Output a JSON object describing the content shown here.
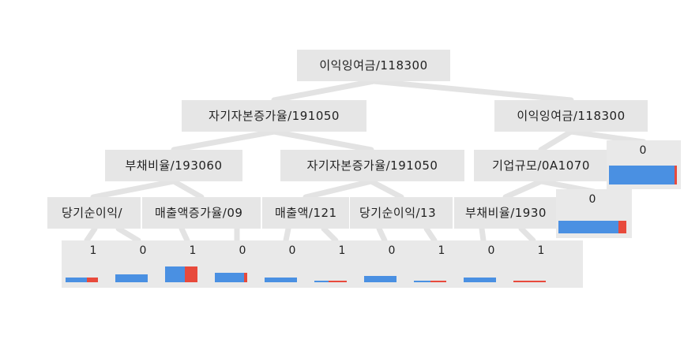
{
  "colors": {
    "edge": "#e3e3e3",
    "node_bg": "#e6e6e6",
    "class0": "#4a90e2",
    "class1": "#e84a3c"
  },
  "nodes": [
    {
      "id": "root",
      "label": "이익잉여금/118300"
    },
    {
      "id": "r",
      "label": "이익잉여금/118300"
    },
    {
      "id": "l",
      "label": "자기자본증가율/191050"
    },
    {
      "id": "ll",
      "label": "부채비율/193060"
    },
    {
      "id": "lr",
      "label": "자기자본증가율/191050"
    },
    {
      "id": "rl",
      "label": "기업규모/0A1070"
    },
    {
      "id": "lll",
      "label": "당기순이익/"
    },
    {
      "id": "llr",
      "label": "매출액증가율/09"
    },
    {
      "id": "lrl",
      "label": "매출액/121"
    },
    {
      "id": "lrr",
      "label": "당기순이익/13"
    },
    {
      "id": "rll",
      "label": "부채비율/1930"
    }
  ],
  "leaves": [
    {
      "label": "1",
      "class0": 0.65,
      "class1": 0.35
    },
    {
      "label": "0",
      "class0": 1.0,
      "class1": 0.0
    },
    {
      "label": "1",
      "class0": 0.6,
      "class1": 0.4
    },
    {
      "label": "0",
      "class0": 0.9,
      "class1": 0.1
    },
    {
      "label": "0",
      "class0": 1.0,
      "class1": 0.0
    },
    {
      "label": "1",
      "class0": 0.45,
      "class1": 0.55
    },
    {
      "label": "0",
      "class0": 1.0,
      "class1": 0.0
    },
    {
      "label": "1",
      "class0": 0.5,
      "class1": 0.5
    },
    {
      "label": "0",
      "class0": 1.0,
      "class1": 0.0
    },
    {
      "label": "1",
      "class0": 0.0,
      "class1": 1.0
    }
  ],
  "side_leaves": [
    {
      "label": "0",
      "class0": 0.97,
      "class1": 0.03
    },
    {
      "label": "0",
      "class0": 0.88,
      "class1": 0.12
    }
  ]
}
